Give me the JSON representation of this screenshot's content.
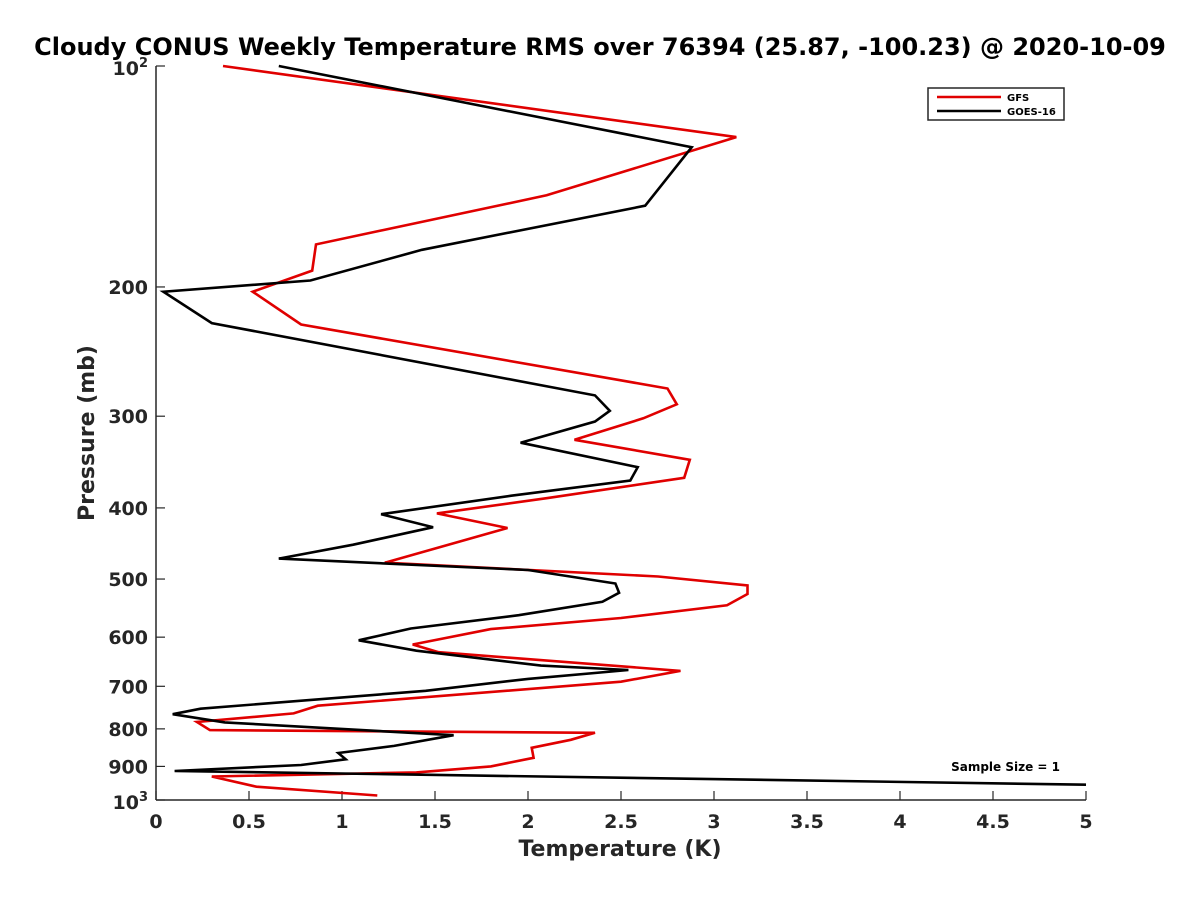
{
  "chart_data": {
    "type": "line",
    "title": "Cloudy CONUS Weekly Temperature RMS over 76394 (25.87, -100.23) @ 2020-10-09",
    "xlabel": "Temperature (K)",
    "ylabel": "Pressure (mb)",
    "xlim": [
      0,
      5
    ],
    "ylim": [
      100,
      1000
    ],
    "yscale": "log",
    "y_reversed": true,
    "xticks": [
      "0",
      "0.5",
      "1",
      "1.5",
      "2",
      "2.5",
      "3",
      "3.5",
      "4",
      "4.5",
      "5"
    ],
    "yticks": [
      {
        "value": 100,
        "base": "10",
        "exp": "2"
      },
      {
        "value": 200,
        "label": "200"
      },
      {
        "value": 300,
        "label": "300"
      },
      {
        "value": 400,
        "label": "400"
      },
      {
        "value": 500,
        "label": "500"
      },
      {
        "value": 600,
        "label": "600"
      },
      {
        "value": 700,
        "label": "700"
      },
      {
        "value": 800,
        "label": "800"
      },
      {
        "value": 900,
        "label": "900"
      },
      {
        "value": 1000,
        "base": "10",
        "exp": "3"
      }
    ],
    "grid": false,
    "legend_position": "top-right",
    "annotation": "Sample Size = 1",
    "series": [
      {
        "name": "GFS",
        "color": "#e00000",
        "points": [
          [
            0.36,
            100
          ],
          [
            3.12,
            125
          ],
          [
            2.1,
            150
          ],
          [
            0.86,
            175
          ],
          [
            0.84,
            190
          ],
          [
            0.52,
            203
          ],
          [
            0.78,
            225
          ],
          [
            2.75,
            275
          ],
          [
            2.8,
            289
          ],
          [
            2.62,
            302
          ],
          [
            2.25,
            323
          ],
          [
            2.87,
            344
          ],
          [
            2.84,
            364
          ],
          [
            2.1,
            388
          ],
          [
            1.51,
            407
          ],
          [
            1.89,
            426
          ],
          [
            1.23,
            475
          ],
          [
            2.7,
            496
          ],
          [
            3.18,
            510
          ],
          [
            3.18,
            524
          ],
          [
            3.07,
            543
          ],
          [
            2.5,
            565
          ],
          [
            1.8,
            585
          ],
          [
            1.38,
            614
          ],
          [
            1.52,
            629
          ],
          [
            2.82,
            667
          ],
          [
            2.5,
            690
          ],
          [
            0.87,
            744
          ],
          [
            0.74,
            762
          ],
          [
            0.22,
            783
          ],
          [
            0.29,
            803
          ],
          [
            2.36,
            810
          ],
          [
            2.23,
            828
          ],
          [
            2.02,
            849
          ],
          [
            2.03,
            876
          ],
          [
            1.8,
            900
          ],
          [
            1.4,
            917
          ],
          [
            0.3,
            929
          ],
          [
            0.54,
            959
          ],
          [
            1.19,
            986
          ]
        ]
      },
      {
        "name": "GOES-16",
        "color": "#000000",
        "points": [
          [
            0.66,
            100
          ],
          [
            2.88,
            129
          ],
          [
            2.63,
            155
          ],
          [
            1.43,
            178
          ],
          [
            0.83,
            196
          ],
          [
            0.04,
            203
          ],
          [
            0.3,
            224
          ],
          [
            2.36,
            281
          ],
          [
            2.44,
            295
          ],
          [
            2.36,
            305
          ],
          [
            1.96,
            326
          ],
          [
            2.59,
            352
          ],
          [
            2.55,
            367
          ],
          [
            1.91,
            385
          ],
          [
            1.21,
            408
          ],
          [
            1.49,
            425
          ],
          [
            1.06,
            449
          ],
          [
            0.66,
            469
          ],
          [
            2.0,
            486
          ],
          [
            2.47,
            507
          ],
          [
            2.49,
            522
          ],
          [
            2.4,
            537
          ],
          [
            1.95,
            560
          ],
          [
            1.37,
            584
          ],
          [
            1.09,
            606
          ],
          [
            1.4,
            626
          ],
          [
            2.07,
            656
          ],
          [
            2.54,
            665
          ],
          [
            2.0,
            684
          ],
          [
            1.45,
            710
          ],
          [
            0.24,
            751
          ],
          [
            0.09,
            764
          ],
          [
            0.37,
            784
          ],
          [
            1.6,
            816
          ],
          [
            1.28,
            844
          ],
          [
            0.98,
            863
          ],
          [
            1.02,
            880
          ],
          [
            0.78,
            896
          ],
          [
            0.1,
            913
          ],
          [
            5.0,
            953
          ]
        ]
      }
    ]
  }
}
